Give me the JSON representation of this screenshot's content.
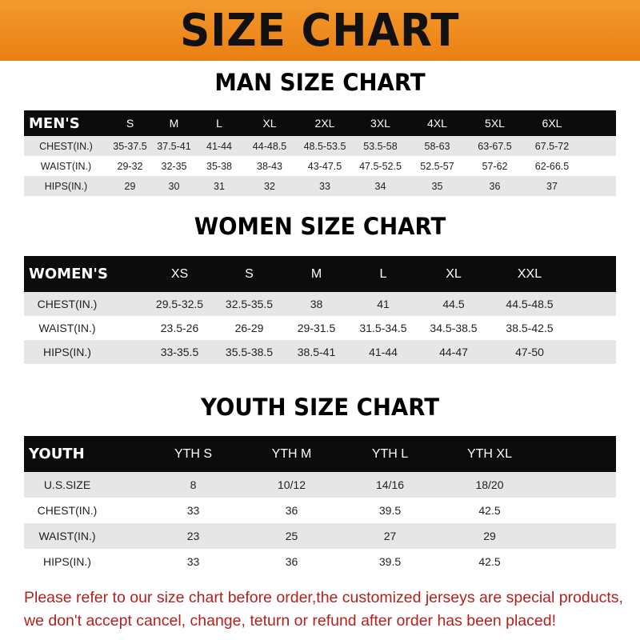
{
  "title": "SIZE CHART",
  "men": {
    "title": "MAN SIZE CHART",
    "header_label": "MEN'S",
    "sizes": [
      "S",
      "M",
      "L",
      "XL",
      "2XL",
      "3XL",
      "4XL",
      "5XL",
      "6XL"
    ],
    "rows": [
      {
        "label": "CHEST(IN.)",
        "values": [
          "35-37.5",
          "37.5-41",
          "41-44",
          "44-48.5",
          "48.5-53.5",
          "53.5-58",
          "58-63",
          "63-67.5",
          "67.5-72"
        ]
      },
      {
        "label": "WAIST(IN.)",
        "values": [
          "29-32",
          "32-35",
          "35-38",
          "38-43",
          "43-47.5",
          "47.5-52.5",
          "52.5-57",
          "57-62",
          "62-66.5"
        ]
      },
      {
        "label": "HIPS(IN.)",
        "values": [
          "29",
          "30",
          "31",
          "32",
          "33",
          "34",
          "35",
          "36",
          "37"
        ]
      }
    ]
  },
  "women": {
    "title": "WOMEN SIZE CHART",
    "header_label": "WOMEN'S",
    "sizes": [
      "XS",
      "S",
      "M",
      "L",
      "XL",
      "XXL"
    ],
    "rows": [
      {
        "label": "CHEST(IN.)",
        "values": [
          "29.5-32.5",
          "32.5-35.5",
          "38",
          "41",
          "44.5",
          "44.5-48.5"
        ]
      },
      {
        "label": "WAIST(IN.)",
        "values": [
          "23.5-26",
          "26-29",
          "29-31.5",
          "31.5-34.5",
          "34.5-38.5",
          "38.5-42.5"
        ]
      },
      {
        "label": "HIPS(IN.)",
        "values": [
          "33-35.5",
          "35.5-38.5",
          "38.5-41",
          "41-44",
          "44-47",
          "47-50"
        ]
      }
    ]
  },
  "youth": {
    "title": "YOUTH SIZE CHART",
    "header_label": "YOUTH",
    "sizes": [
      "YTH S",
      "YTH M",
      "YTH L",
      "YTH XL"
    ],
    "rows": [
      {
        "label": "U.S.SIZE",
        "values": [
          "8",
          "10/12",
          "14/16",
          "18/20"
        ]
      },
      {
        "label": "CHEST(IN.)",
        "values": [
          "33",
          "36",
          "39.5",
          "42.5"
        ]
      },
      {
        "label": "WAIST(IN.)",
        "values": [
          "23",
          "25",
          "27",
          "29"
        ]
      },
      {
        "label": "HIPS(IN.)",
        "values": [
          "33",
          "36",
          "39.5",
          "42.5"
        ]
      }
    ]
  },
  "notice": [
    "Please refer to our size chart before order,the customized jerseys are special products,",
    "we don't accept cancel, change, teturn or refund after order has been placed!"
  ],
  "colors": {
    "banner": "#ee8a1e",
    "header_row": "#0c0c0c",
    "stripe": "#e6e6e6",
    "notice": "#b3211e"
  }
}
